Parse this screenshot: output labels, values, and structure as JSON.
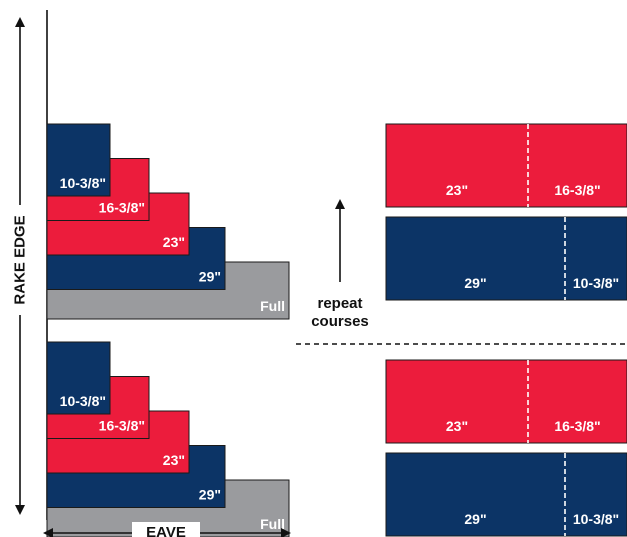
{
  "colors": {
    "blue": "#0c3466",
    "red": "#ec1c3c",
    "gray": "#9a9b9e",
    "outline": "#1a1a1a",
    "text_light": "#ffffff",
    "text_dark": "#111111"
  },
  "axis_labels": {
    "rake_edge": "RAKE EDGE",
    "eave": "EAVE"
  },
  "repeat_note": {
    "line1": "repeat",
    "line2": "courses"
  },
  "stacks": [
    {
      "name": "upper",
      "pieces": [
        {
          "label": "10-3/8\"",
          "color": "blue"
        },
        {
          "label": "16-3/8\"",
          "color": "red"
        },
        {
          "label": "23\"",
          "color": "red"
        },
        {
          "label": "29\"",
          "color": "blue"
        },
        {
          "label": "Full",
          "color": "gray"
        }
      ]
    },
    {
      "name": "lower",
      "pieces": [
        {
          "label": "10-3/8\"",
          "color": "blue"
        },
        {
          "label": "16-3/8\"",
          "color": "red"
        },
        {
          "label": "23\"",
          "color": "red"
        },
        {
          "label": "29\"",
          "color": "blue"
        },
        {
          "label": "Full",
          "color": "gray"
        }
      ]
    }
  ],
  "courses": [
    {
      "color": "red",
      "left_label": "23\"",
      "right_label": "16-3/8\""
    },
    {
      "color": "blue",
      "left_label": "29\"",
      "right_label": "10-3/8\""
    },
    {
      "color": "red",
      "left_label": "23\"",
      "right_label": "16-3/8\""
    },
    {
      "color": "blue",
      "left_label": "29\"",
      "right_label": "10-3/8\""
    }
  ]
}
